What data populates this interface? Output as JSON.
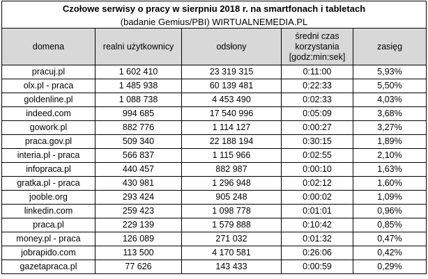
{
  "title": "Czołowe serwisy o pracy w sierpniu 2018 r.  na smartfonach i tabletach",
  "subtitle": "(badanie Gemius/PBI) WIRTUALNEMEDIA.PL",
  "headers": {
    "domena": "domena",
    "users": "realni użytkownicy",
    "views": "odsłony",
    "time_line1": "średni czas",
    "time_line2": "korzystania",
    "time_line3": "[godz:min:sek]",
    "reach": "zasięg"
  },
  "rows": [
    {
      "domain": "pracuj.pl",
      "users": "1 602 410",
      "views": "23 319 315",
      "time": "0:11:00",
      "reach": "5,93%"
    },
    {
      "domain": "olx.pl - praca",
      "users": "1 485 938",
      "views": "60 139 481",
      "time": "0:22:33",
      "reach": "5,50%"
    },
    {
      "domain": "goldenline.pl",
      "users": "1 088 738",
      "views": "4 453 490",
      "time": "0:02:33",
      "reach": "4,03%"
    },
    {
      "domain": "indeed.com",
      "users": "994 685",
      "views": "17 540 996",
      "time": "0:05:09",
      "reach": "3,68%"
    },
    {
      "domain": "gowork.pl",
      "users": "882 776",
      "views": "1 114 127",
      "time": "0:00:27",
      "reach": "3,27%"
    },
    {
      "domain": "praca.gov.pl",
      "users": "509 340",
      "views": "22 188 194",
      "time": "0:30:15",
      "reach": "1,89%"
    },
    {
      "domain": "interia.pl - praca",
      "users": "566 837",
      "views": "1 115 966",
      "time": "0:02:55",
      "reach": "2,10%"
    },
    {
      "domain": "infopraca.pl",
      "users": "440 457",
      "views": "882 987",
      "time": "0:00:10",
      "reach": "1,63%"
    },
    {
      "domain": "gratka.pl - praca",
      "users": "430 981",
      "views": "1 296 948",
      "time": "0:02:12",
      "reach": "1,60%"
    },
    {
      "domain": "jooble.org",
      "users": "293 424",
      "views": "905 248",
      "time": "0:00:02",
      "reach": "1,09%"
    },
    {
      "domain": "linkedin.com",
      "users": "259 423",
      "views": "1 098 778",
      "time": "0:01:01",
      "reach": "0,96%"
    },
    {
      "domain": "praca.pl",
      "users": "229 139",
      "views": "1 579 888",
      "time": "0:10:42",
      "reach": "0,85%"
    },
    {
      "domain": "money.pl - praca",
      "users": "126 089",
      "views": "271 032",
      "time": "0:01:32",
      "reach": "0,47%"
    },
    {
      "domain": "jobrapido.com",
      "users": "113 500",
      "views": "4 170 581",
      "time": "0:26:06",
      "reach": "0,42%"
    },
    {
      "domain": "gazetapraca.pl",
      "users": "77 626",
      "views": "143 433",
      "time": "0:00:59",
      "reach": "0,29%"
    }
  ]
}
